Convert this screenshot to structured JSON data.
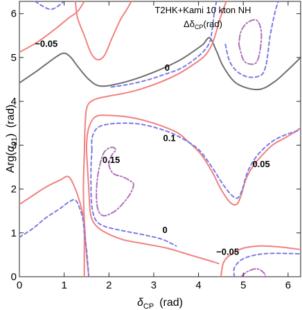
{
  "chart_data": {
    "type": "contour",
    "title": "T2HK+Kami 10 kton NH",
    "subtitle": "Δδ_CP(rad)",
    "subtitle_parts": {
      "delta": "Δδ",
      "sub": "CP",
      "unit": "(rad)"
    },
    "xlabel_parts": {
      "symbol": "δ",
      "sub": "CP",
      "unit": "(rad)"
    },
    "ylabel_parts": {
      "pre": "Arg(",
      "symbol": "α",
      "sub": "21",
      "post": ")",
      "unit": "(rad)"
    },
    "xlim": [
      0,
      6.28
    ],
    "ylim": [
      0,
      6.28
    ],
    "xticks": [
      0,
      1,
      2,
      3,
      4,
      5,
      6
    ],
    "yticks": [
      0,
      1,
      2,
      3,
      4,
      5,
      6
    ],
    "xtick_labels": [
      "0",
      "1",
      "2",
      "3",
      "4",
      "5",
      "6"
    ],
    "ytick_labels": [
      "0",
      "1",
      "2",
      "3",
      "4",
      "5",
      "6"
    ],
    "styles": {
      "0": {
        "color": "#6e6e6e",
        "dash": ""
      },
      "0.05": {
        "color": "#f08080",
        "dash": ""
      },
      "-0.05": {
        "color": "#f08080",
        "dash": ""
      },
      "0.1": {
        "color": "#7a7ae6",
        "dash": "5,4"
      },
      "0.15": {
        "color": "#b070b8",
        "dash": "8,3,2,3"
      }
    },
    "contours": [
      {
        "level": "-0.05",
        "points": [
          [
            0,
            5.12
          ],
          [
            0.4,
            5.35
          ],
          [
            0.8,
            5.65
          ],
          [
            1.1,
            5.9
          ],
          [
            1.3,
            6.05
          ],
          [
            1.45,
            6.28
          ]
        ]
      },
      {
        "level": "-0.05",
        "points": [
          [
            1.25,
            6.28
          ],
          [
            1.3,
            5.9
          ],
          [
            1.45,
            5.5
          ],
          [
            1.6,
            5.1
          ],
          [
            1.75,
            4.95
          ],
          [
            1.9,
            5.05
          ],
          [
            2.05,
            5.4
          ],
          [
            2.25,
            5.85
          ],
          [
            2.4,
            6.1
          ],
          [
            2.5,
            6.28
          ]
        ]
      },
      {
        "level": "0",
        "points": [
          [
            0,
            4.42
          ],
          [
            0.4,
            4.7
          ],
          [
            0.8,
            5.0
          ],
          [
            1.0,
            5.1
          ],
          [
            1.15,
            5.0
          ],
          [
            1.3,
            4.8
          ],
          [
            1.55,
            4.5
          ],
          [
            1.8,
            4.35
          ],
          [
            2.2,
            4.4
          ],
          [
            2.7,
            4.55
          ],
          [
            3.2,
            4.75
          ],
          [
            3.6,
            4.95
          ],
          [
            3.9,
            5.15
          ],
          [
            4.1,
            5.3
          ],
          [
            4.25,
            5.45
          ],
          [
            4.4,
            5.15
          ],
          [
            4.55,
            4.8
          ],
          [
            4.8,
            4.45
          ],
          [
            5.1,
            4.3
          ],
          [
            5.4,
            4.28
          ],
          [
            5.7,
            4.45
          ],
          [
            6.0,
            4.72
          ],
          [
            6.28,
            5.0
          ]
        ]
      },
      {
        "level": "0.05",
        "points": [
          [
            1.55,
            0
          ],
          [
            1.5,
            0.5
          ],
          [
            1.45,
            1.3
          ],
          [
            1.43,
            2.0
          ],
          [
            1.45,
            2.8
          ],
          [
            1.47,
            3.5
          ],
          [
            1.52,
            3.9
          ],
          [
            1.7,
            4.05
          ],
          [
            2.0,
            4.12
          ],
          [
            2.5,
            4.22
          ],
          [
            3.0,
            4.38
          ],
          [
            3.5,
            4.6
          ],
          [
            3.9,
            4.85
          ],
          [
            4.15,
            5.05
          ],
          [
            4.3,
            5.3
          ],
          [
            4.4,
            5.6
          ],
          [
            4.5,
            5.95
          ],
          [
            4.62,
            6.28
          ]
        ]
      },
      {
        "level": "0.05",
        "points": [
          [
            4.5,
            0
          ],
          [
            4.55,
            0.3
          ],
          [
            4.65,
            0.45
          ],
          [
            4.8,
            0.55
          ],
          [
            5.0,
            0.65
          ],
          [
            5.35,
            0.7
          ],
          [
            5.8,
            0.68
          ],
          [
            6.28,
            0.62
          ]
        ]
      },
      {
        "level": "0.05",
        "points": [
          [
            6.28,
            3.4
          ],
          [
            6.15,
            3.3
          ],
          [
            5.9,
            3.15
          ],
          [
            5.65,
            3.0
          ],
          [
            5.4,
            2.75
          ],
          [
            5.2,
            2.5
          ],
          [
            5.05,
            2.2
          ],
          [
            4.95,
            1.85
          ],
          [
            4.85,
            1.65
          ],
          [
            4.7,
            1.7
          ],
          [
            4.5,
            2.0
          ],
          [
            4.3,
            2.4
          ],
          [
            4.05,
            2.8
          ],
          [
            3.75,
            3.1
          ],
          [
            3.5,
            3.3
          ],
          [
            3.0,
            3.5
          ],
          [
            2.5,
            3.63
          ],
          [
            2.0,
            3.68
          ],
          [
            1.7,
            3.65
          ],
          [
            1.55,
            3.4
          ],
          [
            1.5,
            3.0
          ],
          [
            1.52,
            2.5
          ],
          [
            1.55,
            2.0
          ],
          [
            1.58,
            1.5
          ],
          [
            1.65,
            1.25
          ],
          [
            1.85,
            1.05
          ],
          [
            2.3,
            0.85
          ],
          [
            2.8,
            0.75
          ],
          [
            3.3,
            0.65
          ],
          [
            3.8,
            0.5
          ],
          [
            4.2,
            0.38
          ],
          [
            4.45,
            0.3
          ]
        ]
      },
      {
        "level": "0.05",
        "points": [
          [
            0,
            1.65
          ],
          [
            0.3,
            1.85
          ],
          [
            0.6,
            2.05
          ],
          [
            0.9,
            2.2
          ],
          [
            1.1,
            2.28
          ],
          [
            1.25,
            2.0
          ],
          [
            1.35,
            1.7
          ],
          [
            1.42,
            1.4
          ],
          [
            1.45,
            1.1
          ],
          [
            1.45,
            0.6
          ],
          [
            1.45,
            0
          ]
        ]
      },
      {
        "level": "0.1",
        "points": [
          [
            0,
            0.9
          ],
          [
            0.3,
            1.1
          ],
          [
            0.6,
            1.35
          ],
          [
            0.9,
            1.55
          ],
          [
            1.1,
            1.7
          ],
          [
            1.25,
            1.75
          ],
          [
            1.35,
            1.55
          ],
          [
            1.42,
            1.3
          ],
          [
            1.45,
            1.0
          ],
          [
            1.5,
            0.6
          ],
          [
            1.55,
            0
          ]
        ]
      },
      {
        "level": "0.1",
        "points": [
          [
            1.62,
            2.9
          ],
          [
            1.62,
            3.15
          ],
          [
            1.7,
            3.35
          ],
          [
            1.85,
            3.45
          ],
          [
            2.2,
            3.5
          ],
          [
            2.7,
            3.48
          ],
          [
            3.2,
            3.35
          ],
          [
            3.55,
            3.2
          ],
          [
            3.85,
            3.02
          ],
          [
            4.05,
            2.85
          ],
          [
            4.3,
            2.5
          ],
          [
            4.55,
            2.1
          ],
          [
            4.75,
            1.85
          ],
          [
            4.88,
            1.8
          ],
          [
            4.98,
            2.0
          ],
          [
            5.1,
            2.4
          ],
          [
            5.3,
            2.75
          ],
          [
            5.6,
            3.05
          ],
          [
            5.9,
            3.22
          ],
          [
            6.28,
            3.35
          ]
        ]
      },
      {
        "level": "0.1",
        "points": [
          [
            1.62,
            2.9
          ],
          [
            1.6,
            2.5
          ],
          [
            1.6,
            2.0
          ],
          [
            1.62,
            1.6
          ],
          [
            1.7,
            1.3
          ],
          [
            1.9,
            1.15
          ],
          [
            2.3,
            1.05
          ],
          [
            2.8,
            0.95
          ],
          [
            3.2,
            0.85
          ],
          [
            3.5,
            0.7
          ]
        ]
      },
      {
        "level": "0.1",
        "points": [
          [
            4.4,
            6.28
          ],
          [
            4.35,
            6.0
          ],
          [
            4.3,
            5.6
          ],
          [
            4.25,
            5.35
          ],
          [
            4.12,
            5.15
          ],
          [
            3.9,
            4.95
          ],
          [
            3.6,
            4.75
          ],
          [
            3.2,
            4.6
          ],
          [
            2.8,
            4.47
          ],
          [
            2.4,
            4.38
          ],
          [
            2.0,
            4.32
          ]
        ]
      },
      {
        "level": "0.1",
        "points": [
          [
            4.8,
            0
          ],
          [
            4.8,
            0.2
          ],
          [
            4.95,
            0.38
          ],
          [
            5.2,
            0.48
          ],
          [
            5.55,
            0.53
          ],
          [
            6.0,
            0.53
          ],
          [
            6.28,
            0.52
          ]
        ]
      },
      {
        "level": "0.1",
        "points": [
          [
            4.6,
            5.3
          ],
          [
            4.7,
            4.9
          ],
          [
            4.9,
            4.65
          ],
          [
            5.15,
            4.55
          ],
          [
            5.4,
            4.6
          ],
          [
            5.5,
            4.8
          ],
          [
            5.55,
            5.1
          ],
          [
            5.6,
            5.5
          ],
          [
            5.7,
            6.0
          ],
          [
            5.78,
            6.28
          ]
        ]
      },
      {
        "level": "0.1",
        "points": [
          [
            0.35,
            6.28
          ],
          [
            0.7,
            6.1
          ],
          [
            1.0,
            6.28
          ]
        ]
      },
      {
        "level": "0.15",
        "points": [
          [
            1.82,
            2.65
          ],
          [
            1.75,
            2.3
          ],
          [
            1.72,
            1.9
          ],
          [
            1.75,
            1.55
          ],
          [
            1.85,
            1.4
          ],
          [
            2.0,
            1.42
          ],
          [
            2.2,
            1.55
          ],
          [
            2.45,
            1.85
          ],
          [
            2.55,
            2.1
          ],
          [
            2.45,
            2.2
          ],
          [
            2.3,
            2.28
          ],
          [
            2.1,
            2.35
          ],
          [
            2.0,
            2.55
          ],
          [
            2.05,
            2.75
          ],
          [
            2.15,
            2.9
          ],
          [
            2.05,
            2.95
          ],
          [
            1.9,
            2.85
          ],
          [
            1.82,
            2.65
          ]
        ]
      },
      {
        "level": "0.15",
        "points": [
          [
            4.9,
            5.3
          ],
          [
            5.0,
            4.95
          ],
          [
            5.15,
            4.85
          ],
          [
            5.3,
            4.9
          ],
          [
            5.38,
            5.2
          ],
          [
            5.4,
            5.6
          ],
          [
            5.3,
            5.85
          ],
          [
            5.1,
            5.8
          ],
          [
            4.95,
            5.6
          ],
          [
            4.9,
            5.3
          ]
        ]
      },
      {
        "level": "0.15",
        "points": [
          [
            4.95,
            0
          ],
          [
            5.1,
            0.12
          ],
          [
            5.3,
            0.18
          ],
          [
            5.45,
            0.1
          ],
          [
            5.5,
            0
          ]
        ]
      }
    ],
    "contour_labels": [
      {
        "text": "−0.05",
        "x": 0.6,
        "y": 5.3
      },
      {
        "text": "0",
        "x": 3.3,
        "y": 4.75
      },
      {
        "text": "0.1",
        "x": 3.35,
        "y": 3.15
      },
      {
        "text": "0.15",
        "x": 2.05,
        "y": 2.65
      },
      {
        "text": "0.05",
        "x": 5.4,
        "y": 2.55
      },
      {
        "text": "0",
        "x": 3.25,
        "y": 1.05
      },
      {
        "text": "−0.05",
        "x": 4.65,
        "y": 0.55
      }
    ]
  }
}
